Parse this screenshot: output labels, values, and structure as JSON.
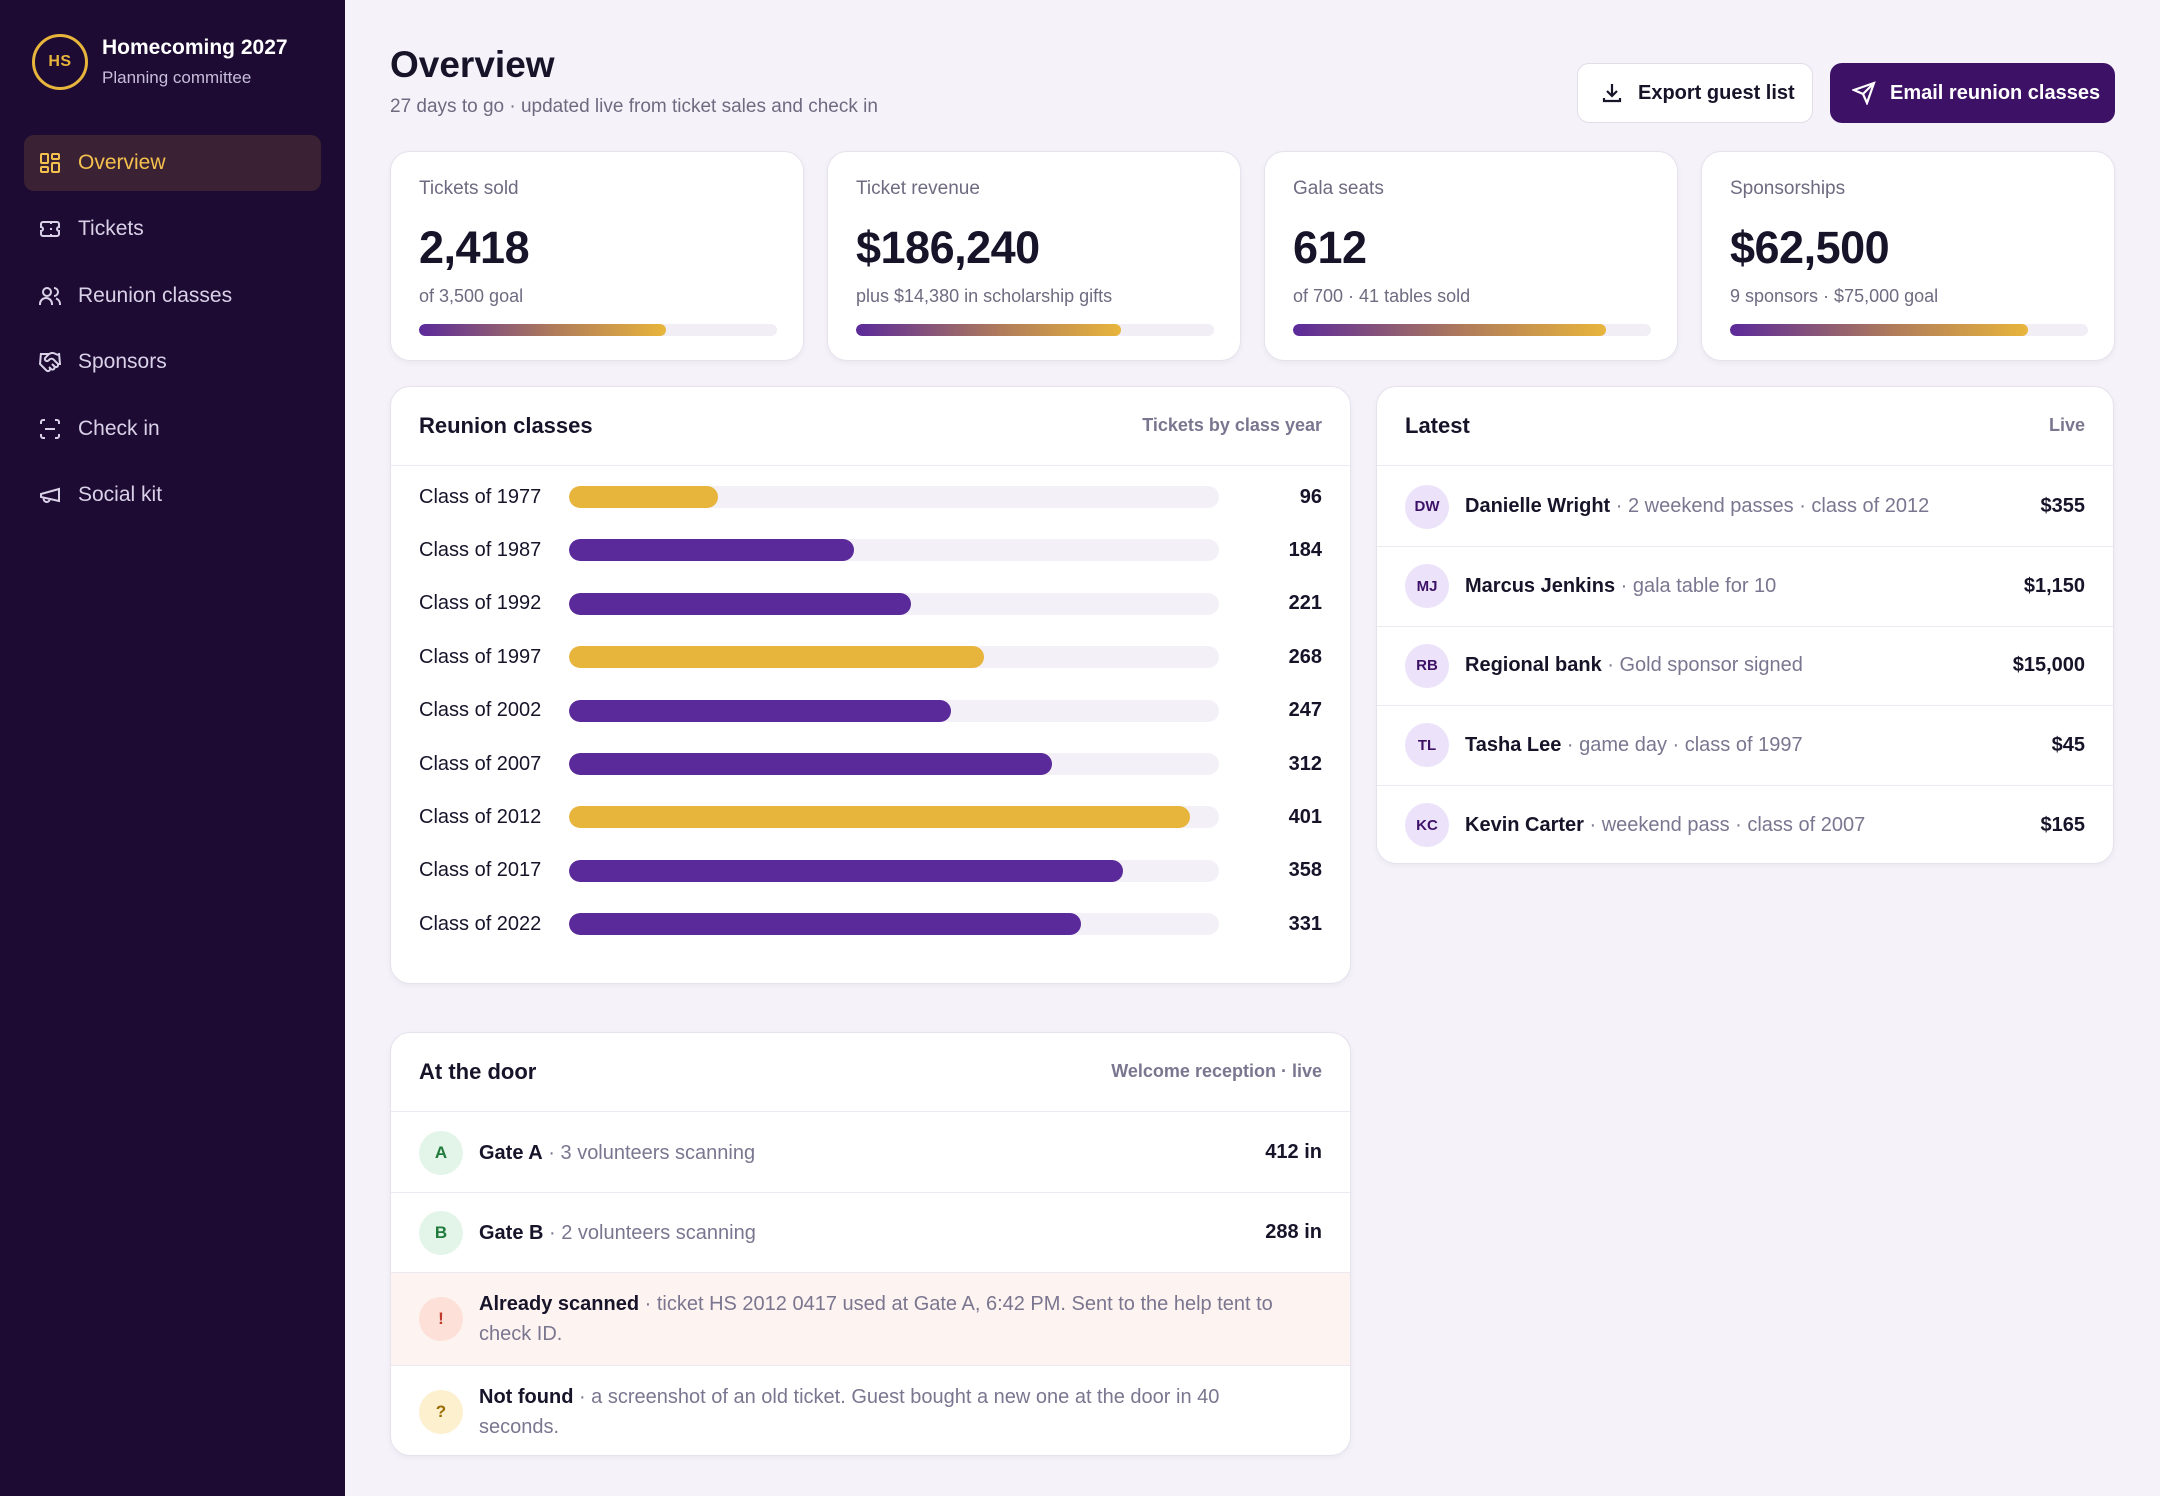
{
  "brand": {
    "logo": "HS",
    "title": "Homecoming 2027",
    "subtitle": "Planning committee"
  },
  "nav": [
    {
      "label": "Overview",
      "icon": "grid-icon",
      "active": true
    },
    {
      "label": "Tickets",
      "icon": "ticket-icon",
      "active": false
    },
    {
      "label": "Reunion classes",
      "icon": "users-icon",
      "active": false
    },
    {
      "label": "Sponsors",
      "icon": "handshake-icon",
      "active": false
    },
    {
      "label": "Check in",
      "icon": "scan-icon",
      "active": false
    },
    {
      "label": "Social kit",
      "icon": "megaphone-icon",
      "active": false
    }
  ],
  "header": {
    "title": "Overview",
    "subtitle": "27 days to go · updated live from ticket sales and check in",
    "export_label": "Export guest list",
    "email_label": "Email reunion classes"
  },
  "stats": [
    {
      "label": "Tickets sold",
      "value": "2,418",
      "note": "of 3,500 goal",
      "progress": 0.69
    },
    {
      "label": "Ticket revenue",
      "value": "$186,240",
      "note": "plus $14,380 in scholarship gifts",
      "progress": 0.74
    },
    {
      "label": "Gala seats",
      "value": "612",
      "note": "of 700 · 41 tables sold",
      "progress": 0.874
    },
    {
      "label": "Sponsorships",
      "value": "$62,500",
      "note": "9 sponsors · $75,000 goal",
      "progress": 0.833
    }
  ],
  "classes": {
    "title": "Reunion classes",
    "meta": "Tickets by class year",
    "max": 420,
    "rows": [
      {
        "label": "Class of 1977",
        "value": 96,
        "display": "96",
        "color": "#e8b53c"
      },
      {
        "label": "Class of 1987",
        "value": 184,
        "display": "184",
        "color": "#5b2a9a"
      },
      {
        "label": "Class of 1992",
        "value": 221,
        "display": "221",
        "color": "#5b2a9a"
      },
      {
        "label": "Class of 1997",
        "value": 268,
        "display": "268",
        "color": "#e8b53c"
      },
      {
        "label": "Class of 2002",
        "value": 247,
        "display": "247",
        "color": "#5b2a9a"
      },
      {
        "label": "Class of 2007",
        "value": 312,
        "display": "312",
        "color": "#5b2a9a"
      },
      {
        "label": "Class of 2012",
        "value": 401,
        "display": "401",
        "color": "#e8b53c"
      },
      {
        "label": "Class of 2017",
        "value": 358,
        "display": "358",
        "color": "#5b2a9a"
      },
      {
        "label": "Class of 2022",
        "value": 331,
        "display": "331",
        "color": "#5b2a9a"
      }
    ]
  },
  "latest": {
    "title": "Latest",
    "meta": "Live",
    "rows": [
      {
        "initials": "DW",
        "name": "Danielle Wright",
        "desc": " · 2 weekend passes · class of 2012",
        "amount": "$355"
      },
      {
        "initials": "MJ",
        "name": "Marcus Jenkins",
        "desc": " · gala table for 10",
        "amount": "$1,150"
      },
      {
        "initials": "RB",
        "name": "Regional bank",
        "desc": " · Gold sponsor signed",
        "amount": "$15,000"
      },
      {
        "initials": "TL",
        "name": "Tasha Lee",
        "desc": " · game day · class of 1997",
        "amount": "$45"
      },
      {
        "initials": "KC",
        "name": "Kevin Carter",
        "desc": " · weekend pass · class of 2007",
        "amount": "$165"
      }
    ]
  },
  "door": {
    "title": "At the door",
    "meta": "Welcome reception · live",
    "rows": [
      {
        "badge": "A",
        "name": "Gate A",
        "desc": " · 3 volunteers scanning",
        "count": "412 in",
        "kind": "gate"
      },
      {
        "badge": "B",
        "name": "Gate B",
        "desc": " · 2 volunteers scanning",
        "count": "288 in",
        "kind": "gate"
      },
      {
        "badge": "!",
        "name": "Already scanned",
        "desc": " · ticket HS 2012 0417 used at Gate A, 6:42 PM. Sent to the help tent to check ID.",
        "count": "",
        "kind": "alert"
      },
      {
        "badge": "?",
        "name": "Not found",
        "desc": " · a screenshot of an old ticket. Guest bought a new one at the door in 40 seconds.",
        "count": "",
        "kind": "warn"
      }
    ]
  },
  "colors": {
    "sidebar": "#1d0b33",
    "accent": "#3d1266",
    "gold": "#e8b53c",
    "purple": "#5b2a9a",
    "gate_badge_bg": "#e3f5e8",
    "alert_badge_bg": "#fde0d8",
    "warn_badge_bg": "#fdf0cf"
  }
}
